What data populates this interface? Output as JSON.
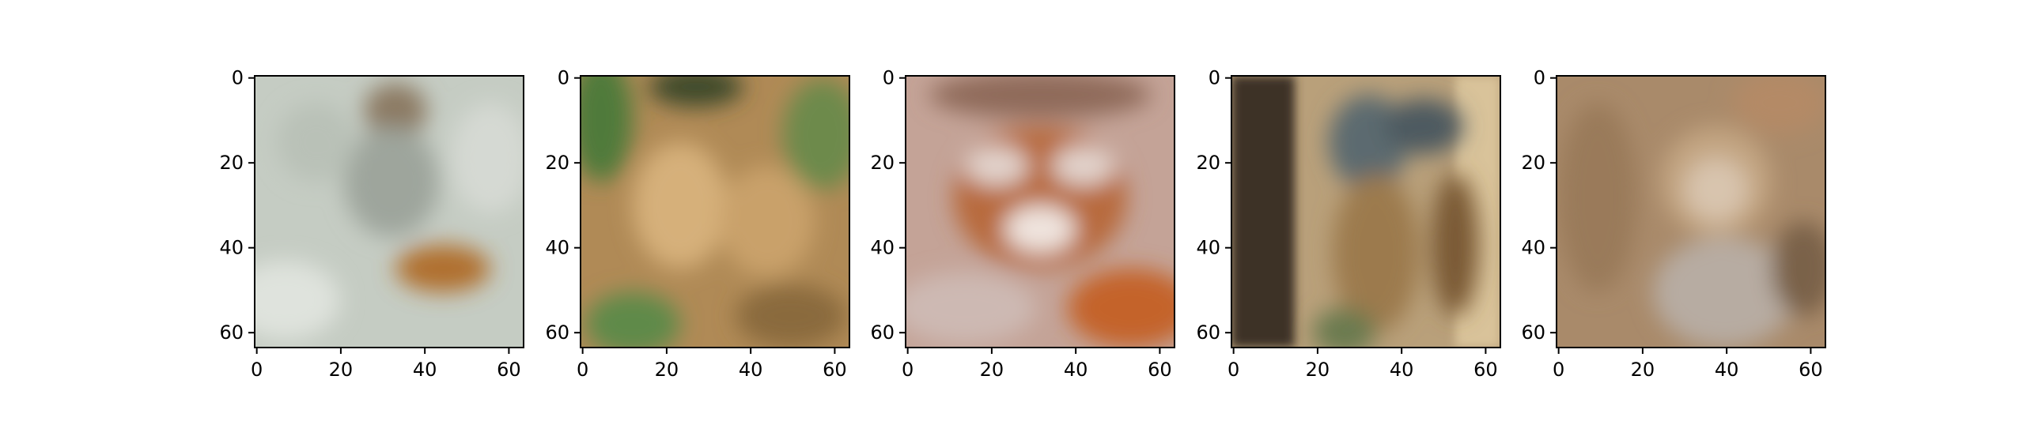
{
  "figure": {
    "panels": [
      {
        "description_icon": "tiger-snow-image",
        "x_ticks": [
          "0",
          "20",
          "40",
          "60"
        ],
        "y_ticks": [
          "0",
          "20",
          "40",
          "60"
        ],
        "palette": [
          "#c9d0c6",
          "#aeb6ad",
          "#8c7a63",
          "#b0702e",
          "#d8dcd6",
          "#6f6a5d"
        ]
      },
      {
        "description_icon": "tiger-cubs-grass-image",
        "x_ticks": [
          "0",
          "20",
          "40",
          "60"
        ],
        "y_ticks": [
          "0",
          "20",
          "40",
          "60"
        ],
        "palette": [
          "#b88f56",
          "#6d8a4b",
          "#d6b07a",
          "#8a6a3e",
          "#4f7a3a",
          "#c9a16b"
        ]
      },
      {
        "description_icon": "tiger-face-closeup-image",
        "x_ticks": [
          "0",
          "20",
          "40",
          "60"
        ],
        "y_ticks": [
          "0",
          "20",
          "40",
          "60"
        ],
        "palette": [
          "#c9a89a",
          "#b86a3c",
          "#7a6a66",
          "#e2d3cc",
          "#c4632b",
          "#9a8580"
        ]
      },
      {
        "description_icon": "tiger-standing-tree-image",
        "x_ticks": [
          "0",
          "20",
          "40",
          "60"
        ],
        "y_ticks": [
          "0",
          "20",
          "40",
          "60"
        ],
        "palette": [
          "#4a3c2e",
          "#9c7a4e",
          "#d9c39a",
          "#5c6a70",
          "#7a5a36",
          "#b79765"
        ]
      },
      {
        "description_icon": "tiger-sitting-image",
        "x_ticks": [
          "0",
          "20",
          "40",
          "60"
        ],
        "y_ticks": [
          "0",
          "20",
          "40",
          "60"
        ],
        "palette": [
          "#a88866",
          "#c3a582",
          "#8e7054",
          "#d8c4ae",
          "#b48a66",
          "#9a8f88"
        ]
      }
    ]
  }
}
